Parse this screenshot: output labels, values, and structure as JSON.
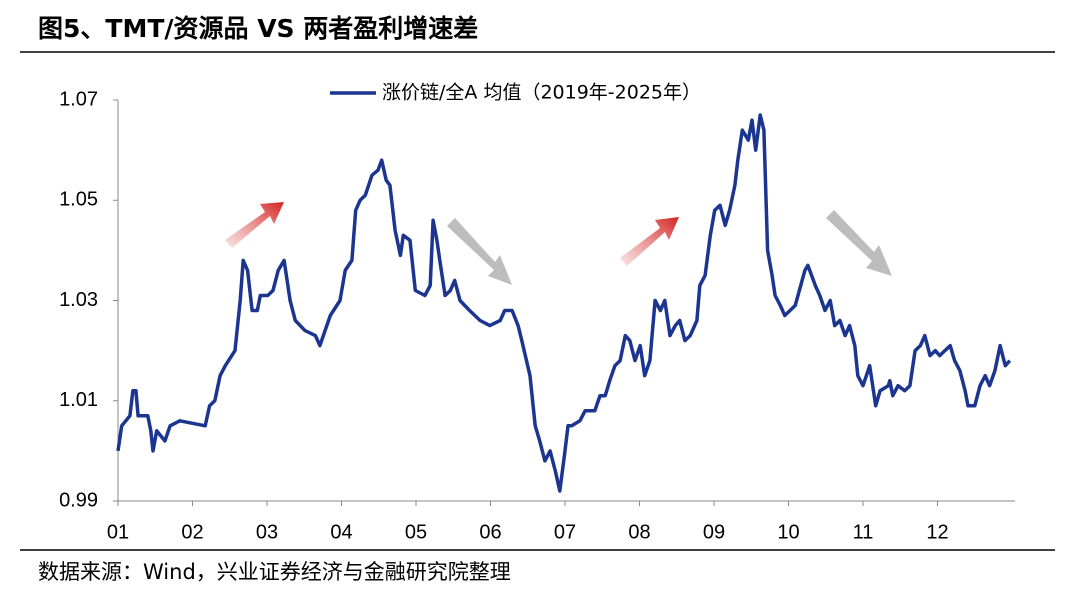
{
  "chart_data": {
    "type": "line",
    "title": "图5、TMT/资源品 VS 两者盈利增速差",
    "source": "数据来源：Wind，兴业证券经济与金融研究院整理",
    "x": [
      1.0,
      1.05,
      1.16,
      1.2,
      1.24,
      1.27,
      1.4,
      1.44,
      1.47,
      1.52,
      1.63,
      1.7,
      1.83,
      2.17,
      2.23,
      2.3,
      2.37,
      2.44,
      2.57,
      2.64,
      2.68,
      2.74,
      2.8,
      2.87,
      2.91,
      3.01,
      3.08,
      3.15,
      3.23,
      3.31,
      3.38,
      3.51,
      3.65,
      3.71,
      3.85,
      3.98,
      4.05,
      4.14,
      4.19,
      4.25,
      4.32,
      4.41,
      4.49,
      4.54,
      4.6,
      4.65,
      4.72,
      4.79,
      4.83,
      4.92,
      4.99,
      5.12,
      5.19,
      5.23,
      5.28,
      5.32,
      5.39,
      5.46,
      5.52,
      5.59,
      5.72,
      5.86,
      5.99,
      6.13,
      6.19,
      6.29,
      6.37,
      6.42,
      6.53,
      6.6,
      6.66,
      6.73,
      6.8,
      6.87,
      6.93,
      7.0,
      7.04,
      7.09,
      7.2,
      7.27,
      7.4,
      7.47,
      7.54,
      7.6,
      7.67,
      7.74,
      7.81,
      7.87,
      7.94,
      8.01,
      8.07,
      8.14,
      8.21,
      8.28,
      8.34,
      8.41,
      8.48,
      8.54,
      8.61,
      8.68,
      8.77,
      8.81,
      8.88,
      8.95,
      9.01,
      9.08,
      9.15,
      9.21,
      9.28,
      9.32,
      9.38,
      9.46,
      9.51,
      9.56,
      9.62,
      9.67,
      9.72,
      9.78,
      9.82,
      9.89,
      9.95,
      10.09,
      10.22,
      10.26,
      10.36,
      10.42,
      10.49,
      10.56,
      10.62,
      10.69,
      10.76,
      10.82,
      10.89,
      10.93,
      11.0,
      11.09,
      11.17,
      11.23,
      11.34,
      11.36,
      11.4,
      11.47,
      11.56,
      11.63,
      11.7,
      11.77,
      11.83,
      11.9,
      11.97,
      12.03,
      12.1,
      12.17,
      12.23,
      12.3,
      12.37,
      12.41,
      12.5,
      12.57,
      12.64,
      12.7,
      12.77,
      12.84,
      12.91,
      12.97
    ],
    "series": [
      {
        "name": "涨价链/全A 均值（2019年-2025年）",
        "color": "#1b3590",
        "values": [
          1.0,
          1.005,
          1.007,
          1.012,
          1.012,
          1.007,
          1.007,
          1.004,
          1.0,
          1.004,
          1.002,
          1.005,
          1.006,
          1.005,
          1.009,
          1.01,
          1.015,
          1.017,
          1.02,
          1.03,
          1.038,
          1.036,
          1.028,
          1.028,
          1.031,
          1.031,
          1.032,
          1.036,
          1.038,
          1.03,
          1.026,
          1.024,
          1.023,
          1.021,
          1.027,
          1.03,
          1.036,
          1.038,
          1.048,
          1.05,
          1.051,
          1.055,
          1.056,
          1.058,
          1.054,
          1.053,
          1.044,
          1.039,
          1.043,
          1.042,
          1.032,
          1.031,
          1.033,
          1.046,
          1.042,
          1.038,
          1.031,
          1.032,
          1.034,
          1.03,
          1.028,
          1.026,
          1.025,
          1.026,
          1.028,
          1.028,
          1.025,
          1.022,
          1.015,
          1.005,
          1.002,
          0.998,
          1.0,
          0.996,
          0.992,
          1.0,
          1.005,
          1.005,
          1.006,
          1.008,
          1.008,
          1.011,
          1.011,
          1.014,
          1.017,
          1.018,
          1.023,
          1.022,
          1.018,
          1.021,
          1.015,
          1.018,
          1.03,
          1.028,
          1.03,
          1.023,
          1.025,
          1.026,
          1.022,
          1.023,
          1.026,
          1.033,
          1.035,
          1.043,
          1.048,
          1.049,
          1.045,
          1.048,
          1.053,
          1.058,
          1.064,
          1.062,
          1.066,
          1.06,
          1.067,
          1.064,
          1.04,
          1.035,
          1.031,
          1.029,
          1.027,
          1.029,
          1.036,
          1.037,
          1.033,
          1.031,
          1.028,
          1.03,
          1.025,
          1.026,
          1.023,
          1.025,
          1.021,
          1.015,
          1.013,
          1.017,
          1.009,
          1.012,
          1.013,
          1.014,
          1.011,
          1.013,
          1.012,
          1.013,
          1.02,
          1.021,
          1.023,
          1.019,
          1.02,
          1.019,
          1.02,
          1.021,
          1.018,
          1.016,
          1.012,
          1.009,
          1.009,
          1.013,
          1.015,
          1.013,
          1.016,
          1.021,
          1.017,
          1.018
        ]
      }
    ],
    "xlim": [
      1,
      13
    ],
    "xticks": [
      {
        "value": 1,
        "label": "01"
      },
      {
        "value": 2,
        "label": "02"
      },
      {
        "value": 3,
        "label": "03"
      },
      {
        "value": 4,
        "label": "04"
      },
      {
        "value": 5,
        "label": "05"
      },
      {
        "value": 6,
        "label": "06"
      },
      {
        "value": 7,
        "label": "07"
      },
      {
        "value": 8,
        "label": "08"
      },
      {
        "value": 9,
        "label": "09"
      },
      {
        "value": 10,
        "label": "10"
      },
      {
        "value": 11,
        "label": "11"
      },
      {
        "value": 12,
        "label": "12"
      }
    ],
    "ylim": [
      0.99,
      1.07
    ],
    "yticks": [
      0.99,
      1.01,
      1.03,
      1.05,
      1.07
    ]
  }
}
